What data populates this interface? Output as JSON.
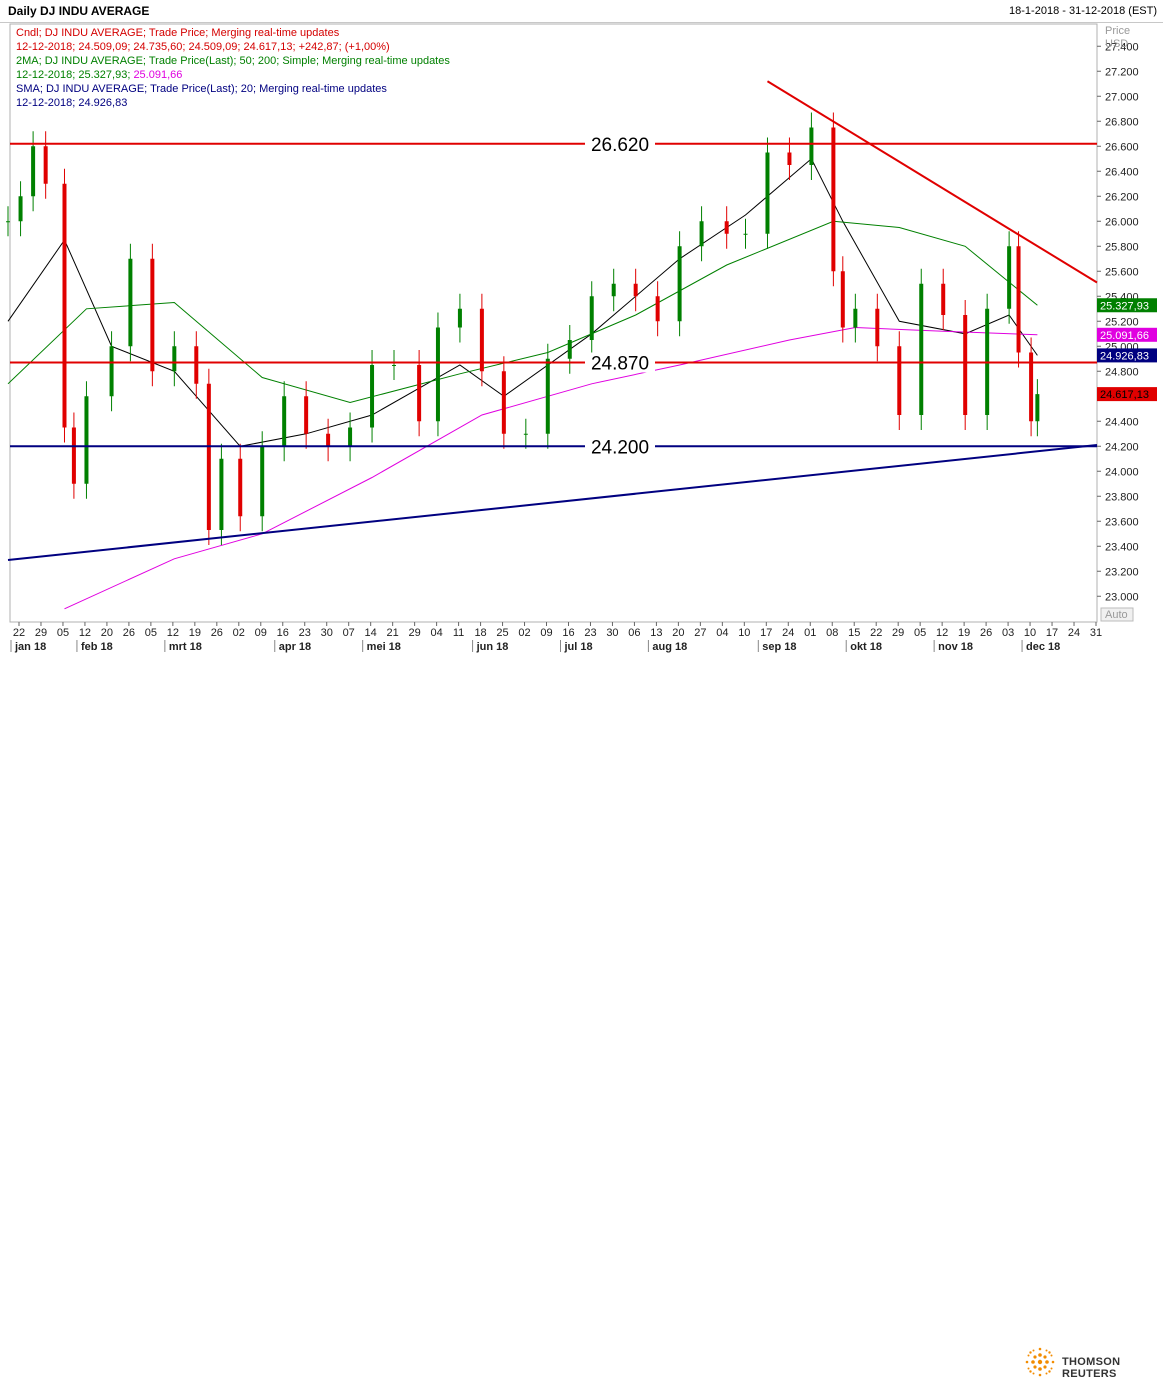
{
  "header": {
    "title": "Daily DJ INDU AVERAGE",
    "date_range": "18-1-2018 - 31-12-2018 (EST)"
  },
  "legend": [
    {
      "text": "Cndl; DJ INDU AVERAGE; Trade Price; Merging real-time updates",
      "color": "#d40000"
    },
    {
      "text": "12-12-2018; 24.509,09; 24.735,60; 24.509,09; 24.617,13; +242,87; (+1,00%)",
      "color": "#d40000"
    },
    {
      "text": "2MA; DJ INDU AVERAGE; Trade Price(Last); 50; 200; Simple; Merging real-time updates",
      "color": "#008000"
    },
    {
      "text": "12-12-2018; 25.327,93;",
      "color": "#008000",
      "extra": "25.091,66",
      "extra_color": "#e000e0"
    },
    {
      "text": "SMA; DJ INDU AVERAGE; Trade Price(Last); 20; Merging real-time updates",
      "color": "#000080"
    },
    {
      "text": "12-12-2018; 24.926,83",
      "color": "#000080"
    }
  ],
  "branding": {
    "name": "THOMSON REUTERS"
  },
  "chart_data": {
    "type": "candlestick",
    "axis": {
      "label_top": "Price",
      "label_unit": "USD",
      "ylim": [
        22850,
        27450
      ],
      "auto_label": "Auto",
      "y_ticks": [
        23000,
        23200,
        23400,
        23600,
        23800,
        24000,
        24200,
        24400,
        24600,
        24800,
        25000,
        25200,
        25400,
        25600,
        25800,
        26000,
        26200,
        26400,
        26600,
        26800,
        27000,
        27200,
        27400
      ]
    },
    "x_axis": {
      "day_labels": [
        "22",
        "29",
        "05",
        "12",
        "20",
        "26",
        "05",
        "12",
        "19",
        "26",
        "02",
        "09",
        "16",
        "23",
        "30",
        "07",
        "14",
        "21",
        "29",
        "04",
        "11",
        "18",
        "25",
        "02",
        "09",
        "16",
        "23",
        "30",
        "06",
        "13",
        "20",
        "27",
        "04",
        "10",
        "17",
        "24",
        "01",
        "08",
        "15",
        "22",
        "29",
        "05",
        "12",
        "19",
        "26",
        "03",
        "10",
        "17",
        "24",
        "31"
      ],
      "month_labels": [
        {
          "label": "jan 18",
          "after_day": 0
        },
        {
          "label": "feb 18",
          "after_day": 3
        },
        {
          "label": "mrt 18",
          "after_day": 7
        },
        {
          "label": "apr 18",
          "after_day": 12
        },
        {
          "label": "mei 18",
          "after_day": 16
        },
        {
          "label": "jun 18",
          "after_day": 21
        },
        {
          "label": "jul 18",
          "after_day": 25
        },
        {
          "label": "aug 18",
          "after_day": 29
        },
        {
          "label": "sep 18",
          "after_day": 34
        },
        {
          "label": "okt 18",
          "after_day": 38
        },
        {
          "label": "nov 18",
          "after_day": 42
        },
        {
          "label": "dec 18",
          "after_day": 46
        }
      ]
    },
    "horizontal_levels": [
      {
        "value": 26620,
        "label": "26.620",
        "color": "#e00000"
      },
      {
        "value": 24870,
        "label": "24.870",
        "color": "#e00000"
      },
      {
        "value": 24200,
        "label": "24.200",
        "color": "#000080"
      }
    ],
    "trendlines": [
      {
        "name": "resistance",
        "color": "#e00000",
        "from": {
          "date": "2018-09-17",
          "value": 27120
        },
        "to": {
          "date": "2018-12-31",
          "value": 25510
        }
      },
      {
        "name": "support",
        "color": "#000080",
        "from": {
          "date": "2018-01-18",
          "value": 23290
        },
        "to": {
          "date": "2018-12-31",
          "value": 24210
        }
      }
    ],
    "price_tags": [
      {
        "value": 25327.93,
        "label": "25.327,93",
        "bg": "#008000",
        "fg": "#ffffff"
      },
      {
        "value": 25091.66,
        "label": "25.091,66",
        "bg": "#e000e0",
        "fg": "#ffffff"
      },
      {
        "value": 24926.83,
        "label": "24.926,83",
        "bg": "#000080",
        "fg": "#ffffff"
      },
      {
        "value": 24617.13,
        "label": "24.617,13",
        "bg": "#e00000",
        "fg": "#000000"
      }
    ],
    "series": [
      {
        "name": "Cndl",
        "kind": "candles",
        "up_color": "#008000",
        "down_color": "#e00000",
        "x": [
          "2018-01-18",
          "2018-01-22",
          "2018-01-26",
          "2018-01-30",
          "2018-02-05",
          "2018-02-08",
          "2018-02-12",
          "2018-02-20",
          "2018-02-26",
          "2018-03-05",
          "2018-03-12",
          "2018-03-19",
          "2018-03-23",
          "2018-03-27",
          "2018-04-02",
          "2018-04-09",
          "2018-04-16",
          "2018-04-23",
          "2018-04-30",
          "2018-05-07",
          "2018-05-14",
          "2018-05-21",
          "2018-05-29",
          "2018-06-04",
          "2018-06-11",
          "2018-06-18",
          "2018-06-25",
          "2018-07-02",
          "2018-07-09",
          "2018-07-16",
          "2018-07-23",
          "2018-07-30",
          "2018-08-06",
          "2018-08-13",
          "2018-08-20",
          "2018-08-27",
          "2018-09-04",
          "2018-09-10",
          "2018-09-17",
          "2018-09-24",
          "2018-10-01",
          "2018-10-08",
          "2018-10-11",
          "2018-10-15",
          "2018-10-22",
          "2018-10-29",
          "2018-11-05",
          "2018-11-12",
          "2018-11-19",
          "2018-11-26",
          "2018-12-03",
          "2018-12-06",
          "2018-12-10",
          "2018-12-12"
        ],
        "close": [
          26000,
          26200,
          26600,
          26300,
          24350,
          23900,
          24600,
          25000,
          25700,
          24800,
          25000,
          24700,
          23530,
          24100,
          23640,
          24200,
          24600,
          24300,
          24200,
          24350,
          24850,
          24850,
          24400,
          25150,
          25300,
          24800,
          24300,
          24300,
          24900,
          25050,
          25400,
          25500,
          25400,
          25200,
          25800,
          26000,
          25900,
          25900,
          26550,
          26450,
          26750,
          25600,
          25150,
          25300,
          25000,
          24450,
          25500,
          25250,
          24450,
          25300,
          25800,
          24950,
          24400,
          24617
        ]
      },
      {
        "name": "SMA 20",
        "kind": "line",
        "color": "#000000",
        "x": [
          "2018-01-18",
          "2018-02-05",
          "2018-02-20",
          "2018-03-12",
          "2018-04-02",
          "2018-04-23",
          "2018-05-14",
          "2018-06-11",
          "2018-06-25",
          "2018-07-23",
          "2018-08-20",
          "2018-09-10",
          "2018-10-01",
          "2018-10-11",
          "2018-10-29",
          "2018-11-19",
          "2018-12-03",
          "2018-12-12"
        ],
        "values": [
          25200,
          25850,
          25000,
          24800,
          24200,
          24300,
          24450,
          24850,
          24600,
          25100,
          25700,
          26050,
          26500,
          26000,
          25200,
          25100,
          25250,
          24926.83
        ]
      },
      {
        "name": "2MA 50",
        "kind": "line",
        "color": "#008000",
        "x": [
          "2018-01-18",
          "2018-02-12",
          "2018-03-12",
          "2018-04-09",
          "2018-05-07",
          "2018-06-11",
          "2018-07-09",
          "2018-08-06",
          "2018-09-04",
          "2018-10-08",
          "2018-10-29",
          "2018-11-19",
          "2018-12-12"
        ],
        "values": [
          24700,
          25300,
          25350,
          24750,
          24550,
          24780,
          24950,
          25250,
          25650,
          26000,
          25950,
          25800,
          25327.93
        ]
      },
      {
        "name": "2MA 200",
        "kind": "line",
        "color": "#e000e0",
        "x": [
          "2018-02-05",
          "2018-03-12",
          "2018-04-09",
          "2018-05-14",
          "2018-06-18",
          "2018-07-23",
          "2018-08-20",
          "2018-09-24",
          "2018-10-15",
          "2018-11-12",
          "2018-12-12"
        ],
        "values": [
          22900,
          23300,
          23500,
          23950,
          24450,
          24700,
          24850,
          25050,
          25150,
          25120,
          25091.66
        ]
      }
    ]
  }
}
